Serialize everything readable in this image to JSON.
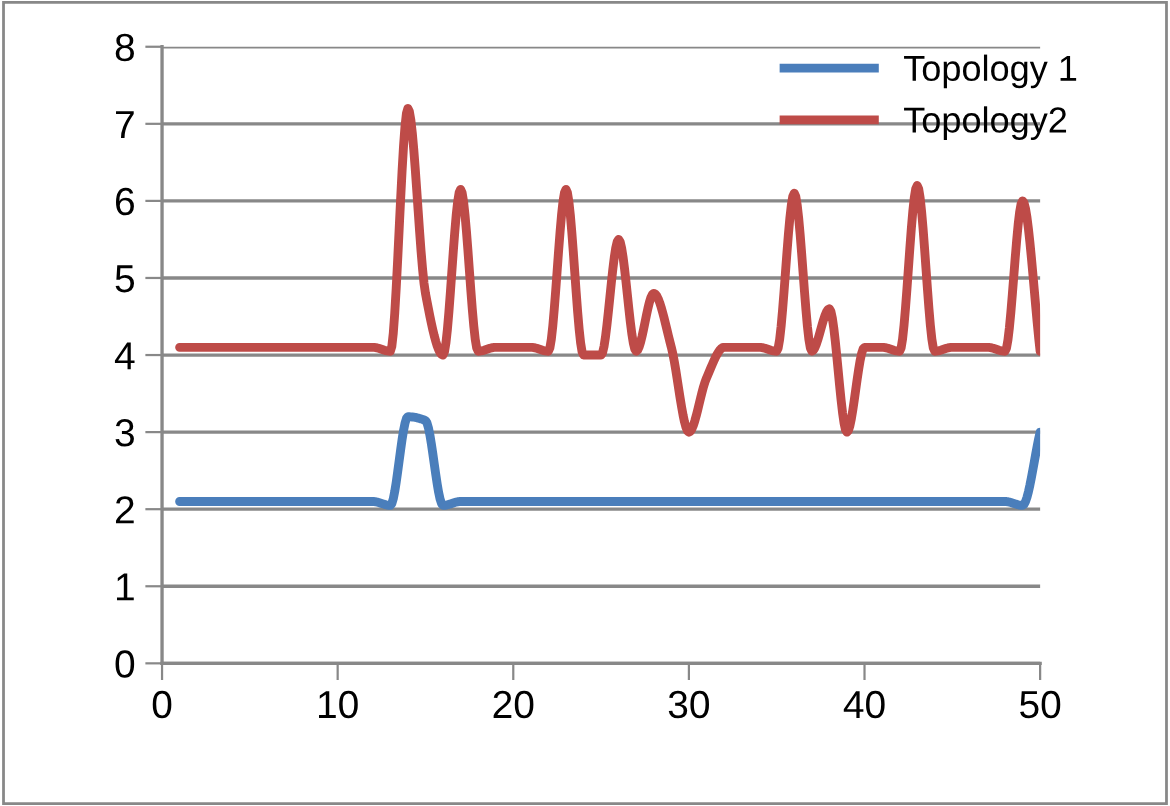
{
  "chart_data": {
    "type": "line",
    "x": [
      1,
      2,
      3,
      4,
      5,
      6,
      7,
      8,
      9,
      10,
      11,
      12,
      13,
      14,
      15,
      16,
      17,
      18,
      19,
      20,
      21,
      22,
      23,
      24,
      25,
      26,
      27,
      28,
      29,
      30,
      31,
      32,
      33,
      34,
      35,
      36,
      37,
      38,
      39,
      40,
      41,
      42,
      43,
      44,
      45,
      46,
      47,
      48,
      49,
      50
    ],
    "series": [
      {
        "name": "Topology 1",
        "color": "#4a7ebb",
        "values": [
          2.1,
          2.1,
          2.1,
          2.1,
          2.1,
          2.1,
          2.1,
          2.1,
          2.1,
          2.1,
          2.1,
          2.1,
          2.05,
          3.2,
          3.15,
          2.05,
          2.1,
          2.1,
          2.1,
          2.1,
          2.1,
          2.1,
          2.1,
          2.1,
          2.1,
          2.1,
          2.1,
          2.1,
          2.1,
          2.1,
          2.1,
          2.1,
          2.1,
          2.1,
          2.1,
          2.1,
          2.1,
          2.1,
          2.1,
          2.1,
          2.1,
          2.1,
          2.1,
          2.1,
          2.1,
          2.1,
          2.1,
          2.1,
          2.05,
          3.0
        ]
      },
      {
        "name": "Topology2",
        "color": "#be4b48",
        "values": [
          4.1,
          4.1,
          4.1,
          4.1,
          4.1,
          4.1,
          4.1,
          4.1,
          4.1,
          4.1,
          4.1,
          4.1,
          4.05,
          7.2,
          4.8,
          4.0,
          6.15,
          4.05,
          4.1,
          4.1,
          4.1,
          4.05,
          6.15,
          4.0,
          4.0,
          5.5,
          4.05,
          4.8,
          4.1,
          3.0,
          3.7,
          4.1,
          4.1,
          4.1,
          4.05,
          6.1,
          4.05,
          4.6,
          3.0,
          4.1,
          4.1,
          4.05,
          6.2,
          4.05,
          4.1,
          4.1,
          4.1,
          4.05,
          6.0,
          4.05
        ]
      }
    ],
    "xlim": [
      0,
      50
    ],
    "xticks": [
      0,
      10,
      20,
      30,
      40,
      50
    ],
    "ylim": [
      0,
      8
    ],
    "yticks": [
      0,
      1,
      2,
      3,
      4,
      5,
      6,
      7,
      8
    ],
    "grid": "y",
    "legend": "top right",
    "marker": "none",
    "line_style": "solid"
  }
}
